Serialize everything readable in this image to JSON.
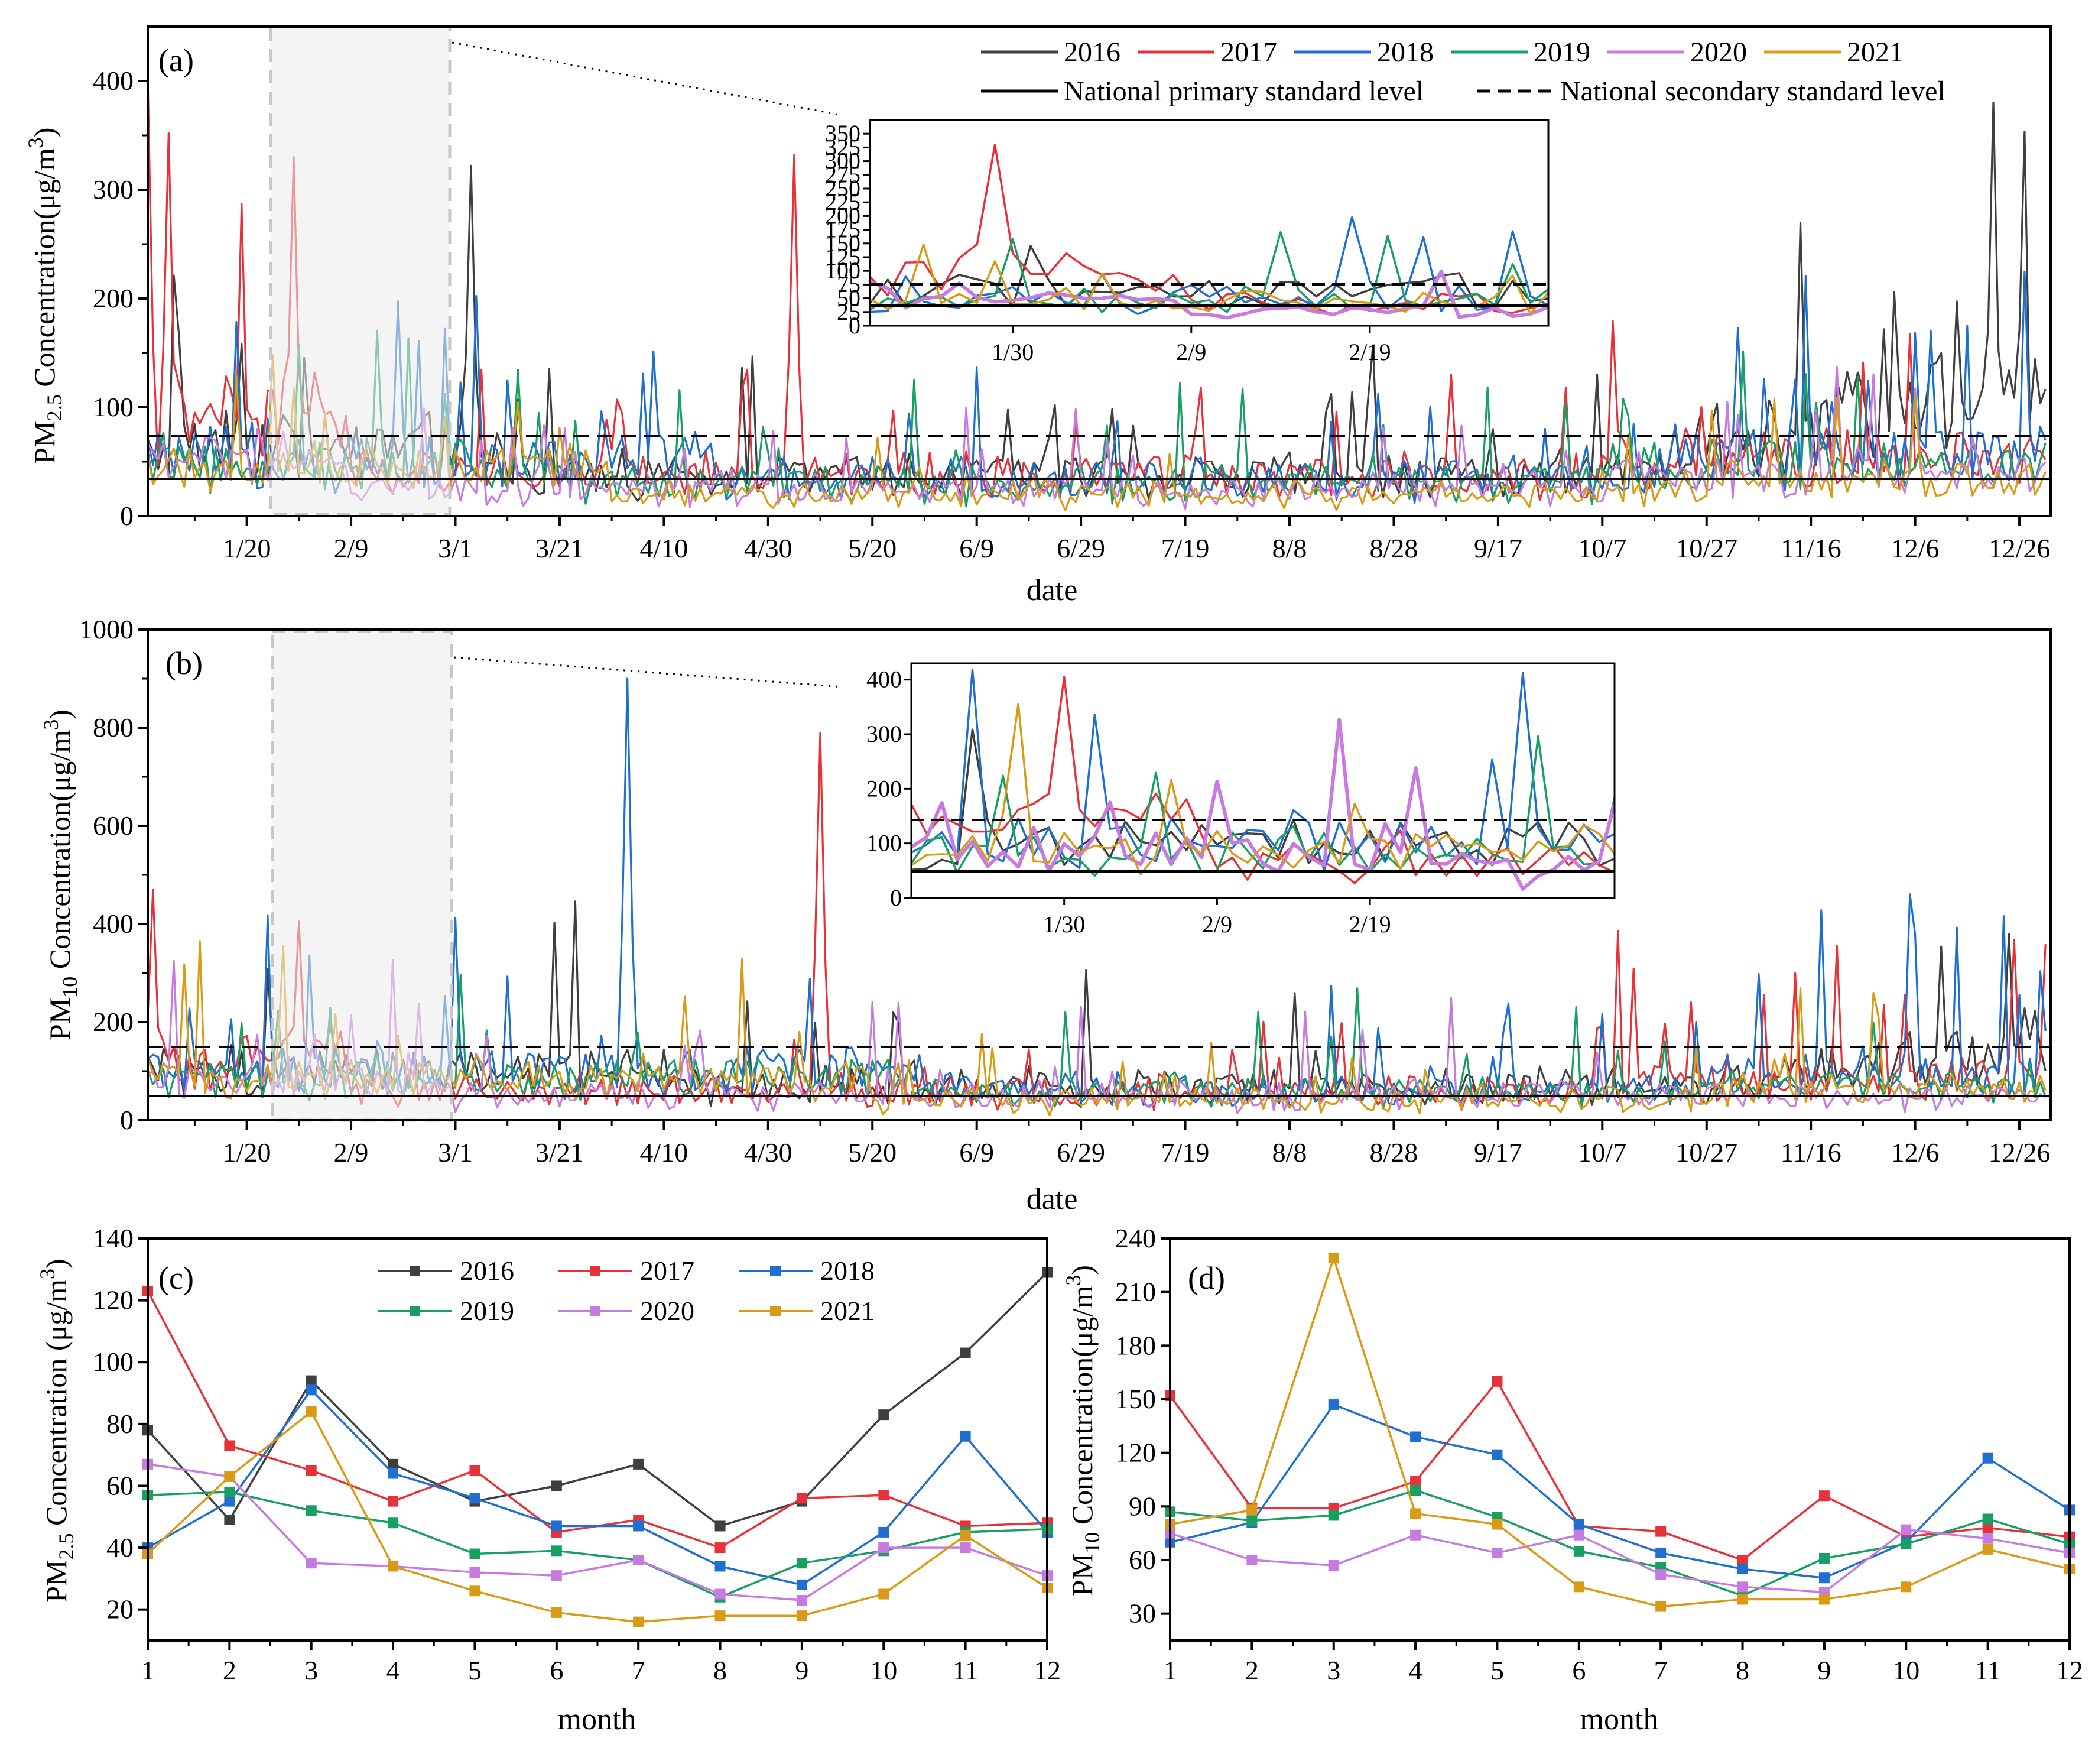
{
  "chart_data": [
    {
      "panel": "(a)",
      "type": "line",
      "ylabel": "PM2.5 Concentration(μg/m3)",
      "ylabel_parts": {
        "pre": "PM",
        "sub": "2.5",
        "mid": " Concentration(μg/m",
        "sup": "3",
        "post": ")"
      },
      "xlabel": "date",
      "ylim": [
        0,
        450
      ],
      "yticks": [
        "0",
        "100",
        "200",
        "300",
        "400"
      ],
      "xticks": [
        "1/20",
        "2/9",
        "3/1",
        "3/21",
        "4/10",
        "4/30",
        "5/20",
        "6/9",
        "6/29",
        "7/19",
        "8/8",
        "8/28",
        "9/17",
        "10/7",
        "10/27",
        "11/16",
        "12/6",
        "12/26"
      ],
      "standards": {
        "primary": 35,
        "secondary": 75
      },
      "legend": [
        "2016",
        "2017",
        "2018",
        "2019",
        "2020",
        "2021"
      ],
      "legend_std": [
        "National primary standard level",
        "National secondary standard level"
      ],
      "series": [
        {
          "name": "2016",
          "color": "#3f3f3f"
        },
        {
          "name": "2017",
          "color": "#e8323a"
        },
        {
          "name": "2018",
          "color": "#1f6fd0"
        },
        {
          "name": "2019",
          "color": "#17a062"
        },
        {
          "name": "2020",
          "color": "#c77ae0"
        },
        {
          "name": "2021",
          "color": "#d99a16"
        }
      ],
      "peaks": [
        {
          "series": "2017",
          "day": 1,
          "value": 403
        },
        {
          "series": "2017",
          "day": 5,
          "value": 352
        },
        {
          "series": "2017",
          "day": 29,
          "value": 330
        },
        {
          "series": "2016",
          "day": 63,
          "value": 322
        },
        {
          "series": "2017",
          "day": 125,
          "value": 332
        },
        {
          "series": "2016",
          "day": 355,
          "value": 380
        }
      ],
      "inset": {
        "ylim": [
          0,
          375
        ],
        "yticks": [
          "0",
          "25",
          "50",
          "75",
          "100",
          "125",
          "150",
          "175",
          "200",
          "225",
          "250",
          "275",
          "300",
          "325",
          "350"
        ],
        "xticks": [
          "1/30",
          "2/9",
          "2/19"
        ],
        "day_range": [
          22,
          60
        ]
      }
    },
    {
      "panel": "(b)",
      "type": "line",
      "ylabel": "PM10 Concentration(μg/m3)",
      "ylabel_parts": {
        "pre": "PM",
        "sub": "10",
        "mid": " Concentration(μg/m",
        "sup": "3",
        "post": ")"
      },
      "xlabel": "date",
      "ylim": [
        0,
        1000
      ],
      "yticks": [
        "0",
        "200",
        "400",
        "600",
        "800",
        "1000"
      ],
      "xticks": [
        "1/20",
        "2/9",
        "3/1",
        "3/21",
        "4/10",
        "4/30",
        "5/20",
        "6/9",
        "6/29",
        "7/19",
        "8/8",
        "8/28",
        "9/17",
        "10/7",
        "10/27",
        "11/16",
        "12/6",
        "12/26"
      ],
      "standards": {
        "primary": 50,
        "secondary": 150
      },
      "peaks": [
        {
          "series": "2018",
          "day": 93,
          "value": 900
        },
        {
          "series": "2017",
          "day": 130,
          "value": 790
        },
        {
          "series": "2017",
          "day": 2,
          "value": 470
        },
        {
          "series": "2017",
          "day": 30,
          "value": 405
        },
        {
          "series": "2016",
          "day": 358,
          "value": 380
        }
      ],
      "inset": {
        "ylim": [
          0,
          430
        ],
        "yticks": [
          "0",
          "100",
          "200",
          "300",
          "400"
        ],
        "xticks": [
          "1/30",
          "2/9",
          "2/19"
        ],
        "day_range": [
          20,
          66
        ]
      }
    },
    {
      "panel": "(c)",
      "type": "line",
      "ylabel": "PM2.5 Concentration (μg/m3)",
      "ylabel_parts": {
        "pre": "PM",
        "sub": "2.5",
        "mid": " Concentration (μg/m",
        "sup": "3",
        "post": ")"
      },
      "xlabel": "month",
      "ylim": [
        10,
        140
      ],
      "yticks": [
        "20",
        "40",
        "60",
        "80",
        "100",
        "120",
        "140"
      ],
      "categories": [
        "1",
        "2",
        "3",
        "4",
        "5",
        "6",
        "7",
        "8",
        "9",
        "10",
        "11",
        "12"
      ],
      "legend": [
        "2016",
        "2017",
        "2018",
        "2019",
        "2020",
        "2021"
      ],
      "series": [
        {
          "name": "2016",
          "color": "#3f3f3f",
          "values": [
            78,
            49,
            94,
            67,
            55,
            60,
            67,
            47,
            55,
            83,
            103,
            129
          ]
        },
        {
          "name": "2017",
          "color": "#e8323a",
          "values": [
            123,
            73,
            65,
            55,
            65,
            45,
            49,
            40,
            56,
            57,
            47,
            48
          ]
        },
        {
          "name": "2018",
          "color": "#1f6fd0",
          "values": [
            40,
            55,
            91,
            64,
            56,
            47,
            47,
            34,
            28,
            45,
            76,
            45
          ]
        },
        {
          "name": "2019",
          "color": "#17a062",
          "values": [
            57,
            58,
            52,
            48,
            38,
            39,
            36,
            24,
            35,
            39,
            45,
            46
          ]
        },
        {
          "name": "2020",
          "color": "#c77ae0",
          "values": [
            67,
            63,
            35,
            34,
            32,
            31,
            36,
            25,
            23,
            40,
            40,
            31
          ]
        },
        {
          "name": "2021",
          "color": "#d99a16",
          "values": [
            38,
            63,
            84,
            34,
            26,
            19,
            16,
            18,
            18,
            25,
            44,
            27
          ]
        }
      ]
    },
    {
      "panel": "(d)",
      "type": "line",
      "ylabel": "PM10 Concentration(μg/m3)",
      "ylabel_parts": {
        "pre": "PM",
        "sub": "10",
        "mid": " Concentration(μg/m",
        "sup": "3",
        "post": ")"
      },
      "xlabel": "month",
      "ylim": [
        15,
        240
      ],
      "yticks": [
        "30",
        "60",
        "90",
        "120",
        "150",
        "180",
        "210",
        "240"
      ],
      "categories": [
        "1",
        "2",
        "3",
        "4",
        "5",
        "6",
        "7",
        "8",
        "9",
        "10",
        "11",
        "12"
      ],
      "series": [
        {
          "name": "2016",
          "color": "#3f3f3f",
          "values": null
        },
        {
          "name": "2017",
          "color": "#e8323a",
          "values": [
            152,
            89,
            89,
            104,
            160,
            79,
            76,
            60,
            96,
            73,
            78,
            73
          ]
        },
        {
          "name": "2018",
          "color": "#1f6fd0",
          "values": [
            70,
            81,
            147,
            129,
            119,
            80,
            64,
            55,
            50,
            70,
            117,
            88
          ]
        },
        {
          "name": "2019",
          "color": "#17a062",
          "values": [
            87,
            82,
            85,
            99,
            84,
            65,
            56,
            40,
            61,
            69,
            83,
            69
          ]
        },
        {
          "name": "2020",
          "color": "#c77ae0",
          "values": [
            75,
            60,
            57,
            74,
            64,
            74,
            52,
            45,
            42,
            77,
            72,
            64
          ]
        },
        {
          "name": "2021",
          "color": "#d99a16",
          "values": [
            80,
            88,
            229,
            86,
            80,
            45,
            34,
            38,
            38,
            45,
            66,
            55
          ]
        }
      ]
    }
  ]
}
